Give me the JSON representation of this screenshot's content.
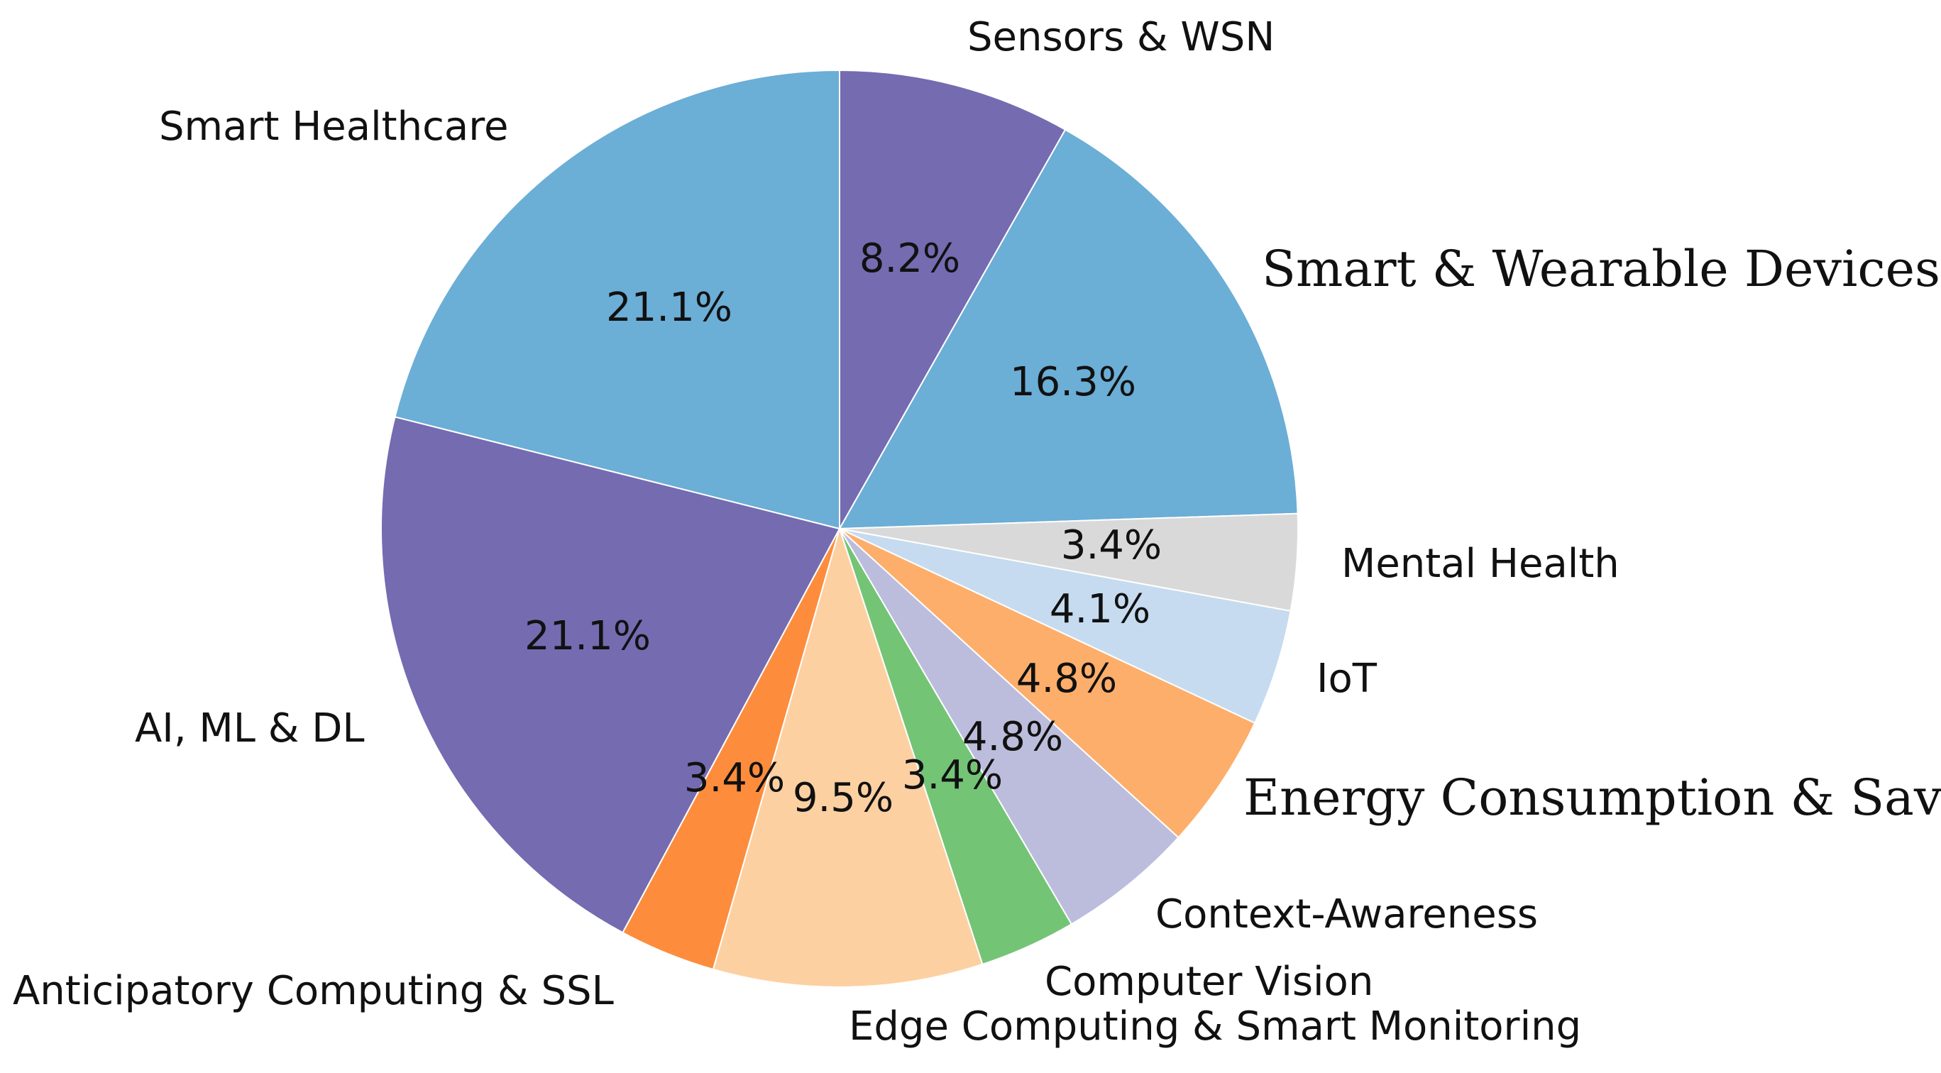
{
  "chart_data": {
    "type": "pie",
    "title": "",
    "slices": [
      {
        "label": "Sensors & WSN",
        "value": 8.2,
        "pct_label": "8.2%",
        "color": "#756bb1"
      },
      {
        "label": "Smart & Wearable Devices",
        "value": 16.3,
        "pct_label": "16.3%",
        "color": "#6baed6"
      },
      {
        "label": "Mental Health",
        "value": 3.4,
        "pct_label": "3.4%",
        "color": "#d9d9d9"
      },
      {
        "label": "IoT",
        "value": 4.1,
        "pct_label": "4.1%",
        "color": "#c6dbef"
      },
      {
        "label": "Energy Consumption & Saving",
        "value": 4.8,
        "pct_label": "4.8%",
        "color": "#fdae6b"
      },
      {
        "label": "Context-Awareness",
        "value": 4.8,
        "pct_label": "4.8%",
        "color": "#bcbddc"
      },
      {
        "label": "Computer Vision",
        "value": 3.4,
        "pct_label": "3.4%",
        "color": "#74c476"
      },
      {
        "label": "Edge Computing & Smart Monitoring",
        "value": 9.5,
        "pct_label": "9.5%",
        "color": "#fdd0a2"
      },
      {
        "label": "Anticipatory Computing & SSL",
        "value": 3.4,
        "pct_label": "3.4%",
        "color": "#fd8d3c"
      },
      {
        "label": "AI, ML & DL",
        "value": 21.1,
        "pct_label": "21.1%",
        "color": "#756bb1"
      },
      {
        "label": "Smart Healthcare",
        "value": 21.1,
        "pct_label": "21.1%",
        "color": "#6baed6"
      }
    ]
  }
}
